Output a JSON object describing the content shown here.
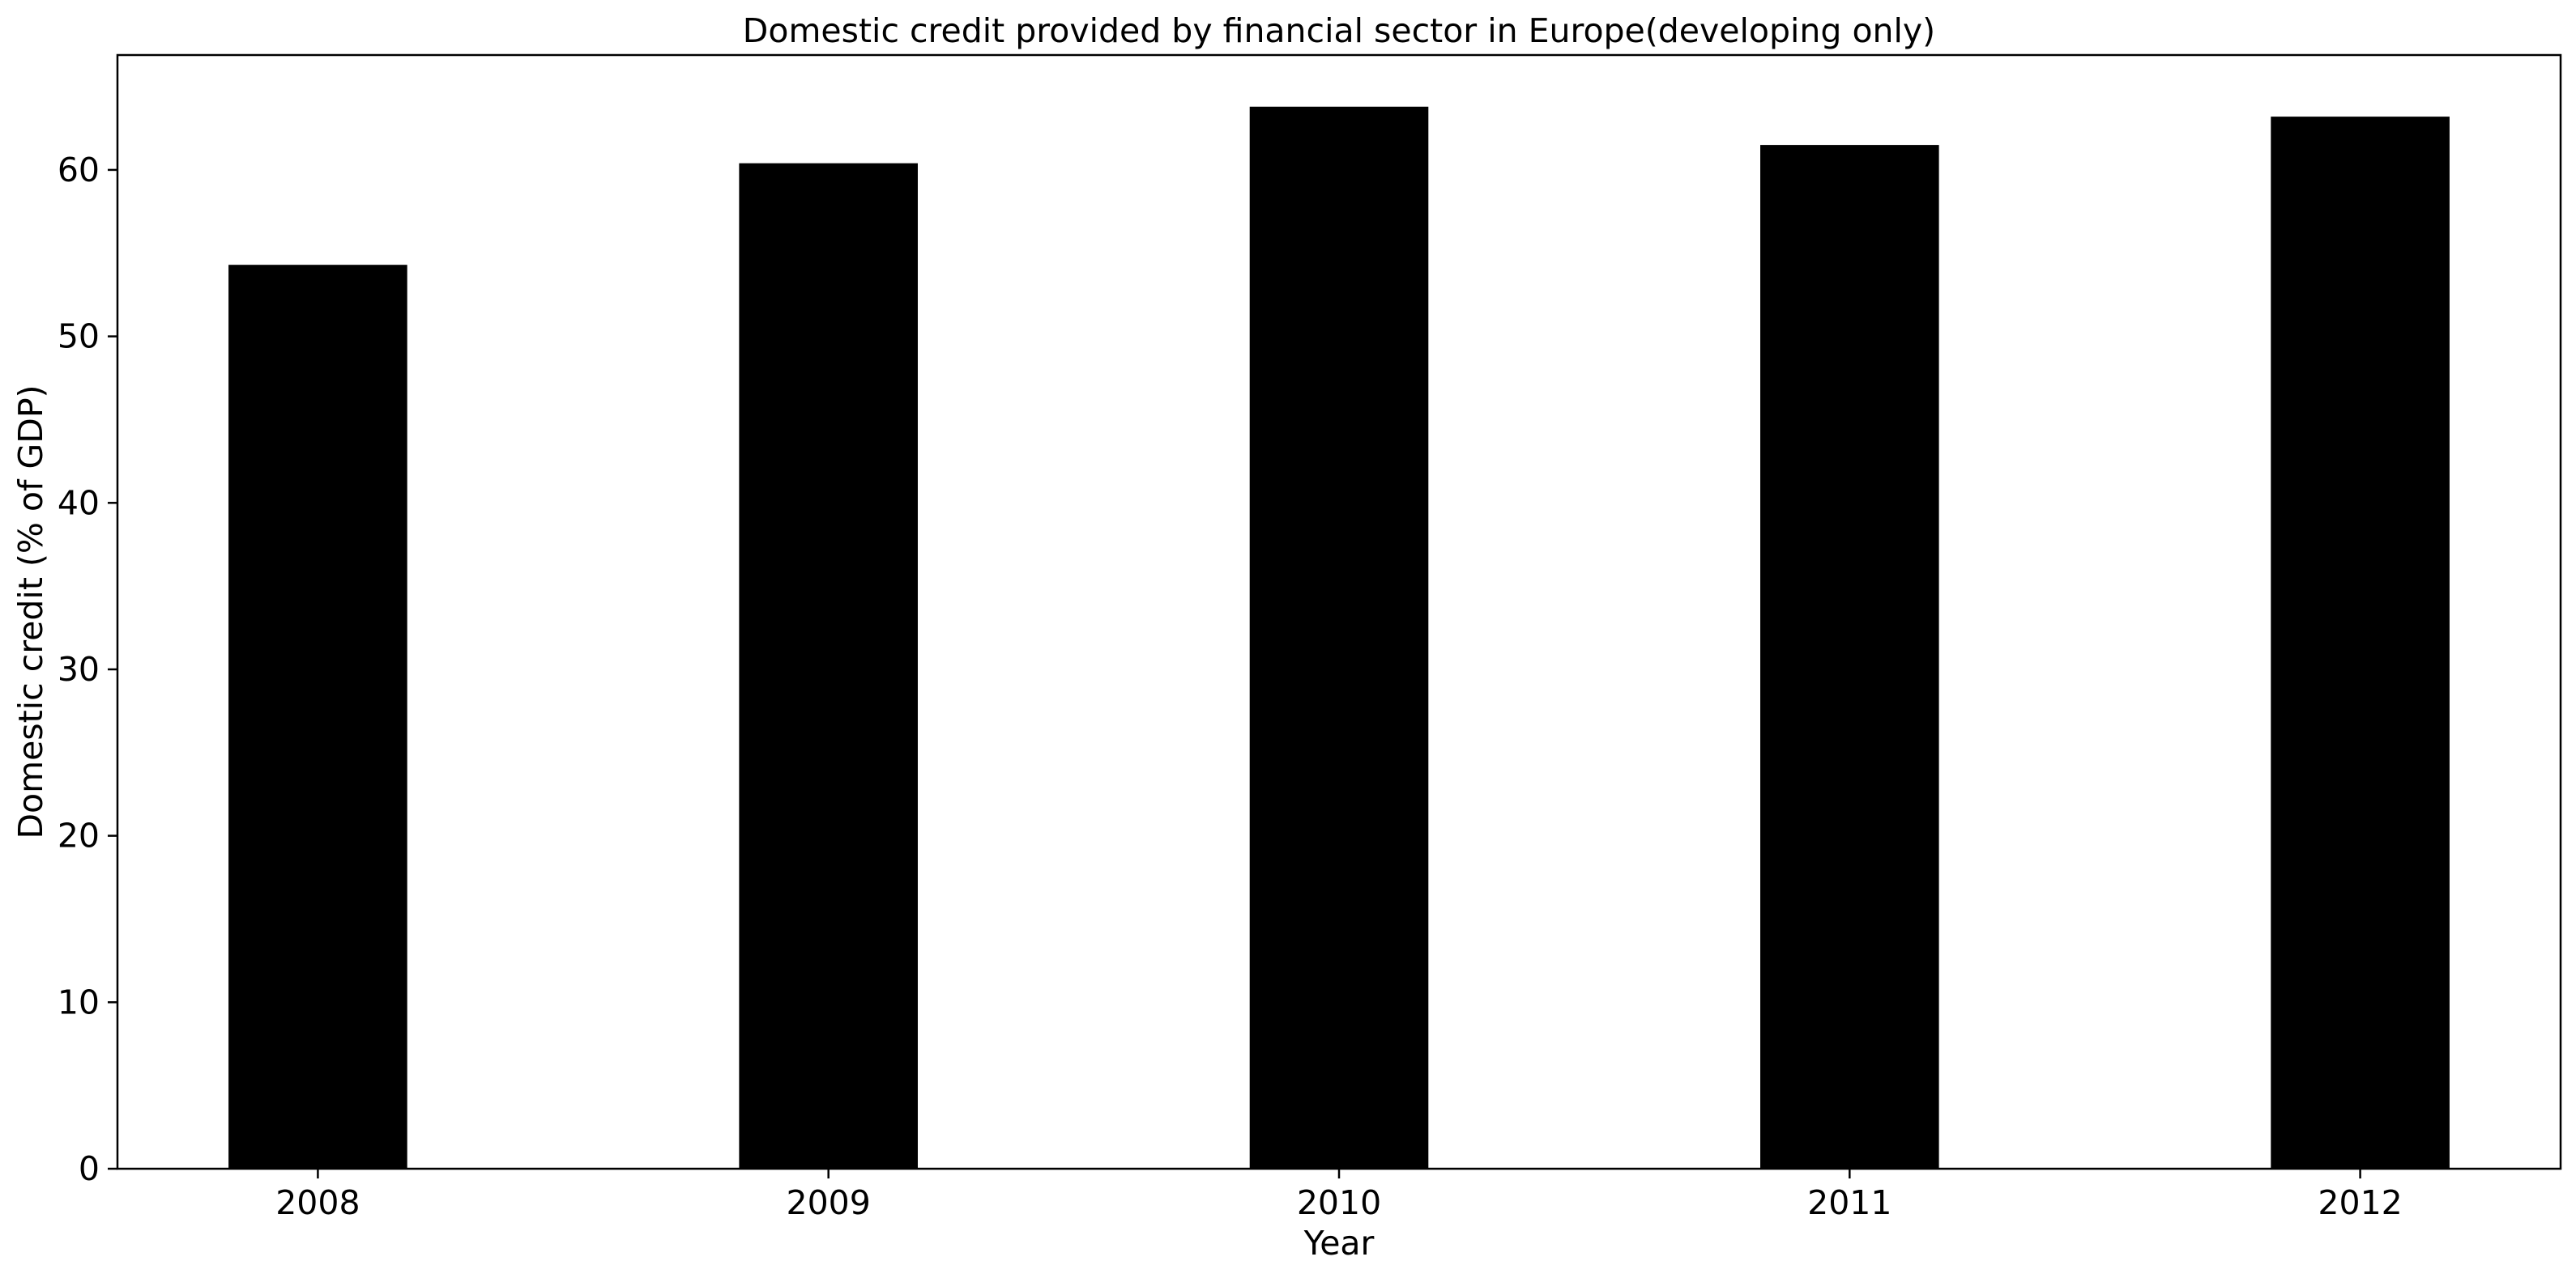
{
  "chart_data": {
    "type": "bar",
    "title": "Domestic credit provided by financial sector in Europe(developing only)",
    "xlabel": "Year",
    "ylabel": "Domestic credit (% of GDP)",
    "categories": [
      "2008",
      "2009",
      "2010",
      "2011",
      "2012"
    ],
    "values": [
      54.3,
      60.4,
      63.8,
      61.5,
      63.2
    ],
    "ylim": [
      0,
      66.9
    ],
    "yticks": [
      0,
      10,
      20,
      30,
      40,
      50,
      60
    ],
    "grid": false,
    "legend": "none",
    "bar_color": "#000000"
  }
}
